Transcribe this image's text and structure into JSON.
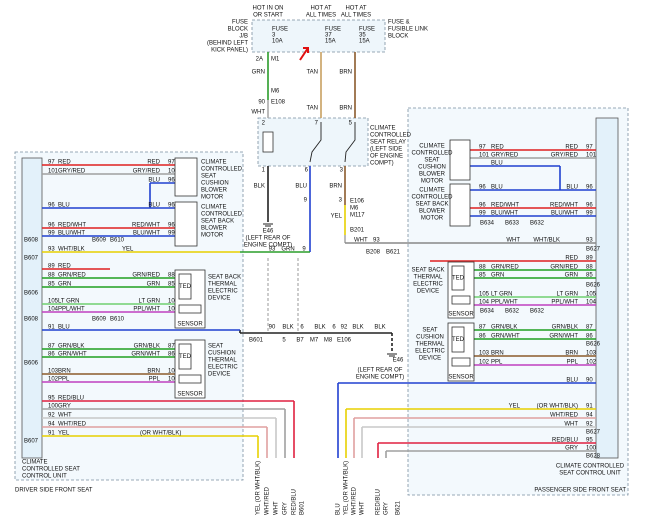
{
  "fuses": {
    "supply_labels": [
      "HOT IN ON",
      "OR START",
      "HOT AT",
      "ALL TIMES",
      "HOT AT",
      "ALL TIMES"
    ],
    "fuse_block": [
      "FUSE",
      "BLOCK",
      "J/B",
      "(BEHIND LEFT",
      "KICK PANEL)"
    ],
    "fuse_3": [
      "FUSE",
      "3",
      "10A"
    ],
    "fuse_37": [
      "FUSE",
      "37",
      "15A"
    ],
    "fuse_35": [
      "FUSE",
      "35",
      "15A"
    ],
    "link_block": [
      "FUSE &",
      "FUSIBLE LINK",
      "BLOCK"
    ]
  },
  "center": {
    "labels": [
      "2A",
      "M1",
      "GRN",
      "M6",
      "90",
      "E108",
      "WHT",
      "TAN",
      "BRN",
      "TAN",
      "BRN",
      "2",
      "7",
      "5",
      "1",
      "6",
      "3",
      "BLK",
      "BLU",
      "BRN",
      "9",
      "3",
      "YEL",
      "E106",
      "M6",
      "M117",
      "B201",
      "WHT",
      "93",
      "B208",
      "B621",
      "E46",
      "93",
      "GRN",
      "9",
      "90",
      "BLK",
      "6",
      "BLK",
      "6",
      "92",
      "BLK",
      "BLK",
      "B601",
      "5",
      "B7",
      "M7",
      "M8",
      "E106",
      "E46"
    ],
    "relay": [
      "CLIMATE",
      "CONTROLLED",
      "SEAT RELAY",
      "(LEFT SIDE",
      "OF ENGINE",
      "COMPT)"
    ],
    "ground_1": [
      "(LEFT REAR OF",
      "ENGINE COMPT)"
    ],
    "ground_2": [
      "(LEFT REAR OF",
      "ENGINE COMPT)"
    ]
  },
  "driver_unit": {
    "rows": [
      {
        "texts": [
          "97",
          "RED",
          "RED",
          "97"
        ],
        "color": "#e02020"
      },
      {
        "texts": [
          "101",
          "GRY/RED",
          "GRY/RED",
          "101"
        ],
        "color": "#a0a0a0"
      },
      {
        "texts": [
          "BLU",
          "96"
        ],
        "color": "#2040d0"
      },
      {
        "texts": [
          "96",
          "BLU",
          "BLU",
          "96"
        ],
        "color": "#2040d0"
      },
      {
        "texts": [
          "96",
          "RED/WHT",
          "RED/WHT",
          "96"
        ],
        "color": "#e02020"
      },
      {
        "texts": [
          "99",
          "BLU/WHT",
          "BLU/WHT",
          "99"
        ],
        "color": "#2040d0"
      },
      {
        "texts": [
          "B608",
          "B609",
          "B610"
        ]
      },
      {
        "texts": [
          "93",
          "WHT/BLK",
          "YEL"
        ],
        "color": "#e8d000"
      },
      {
        "texts": [
          "B607"
        ]
      },
      {
        "texts": [
          "89",
          "RED"
        ],
        "color": "#e02020"
      },
      {
        "texts": [
          "88",
          "GRN/RED",
          "GRN/RED",
          "88"
        ],
        "color": "#20a020"
      },
      {
        "texts": [
          "85",
          "GRN",
          "GRN",
          "85"
        ],
        "color": "#20a020"
      },
      {
        "texts": [
          "B606"
        ]
      },
      {
        "texts": [
          "105",
          "LT GRN",
          "LT GRN",
          "105"
        ],
        "color": "#70d070"
      },
      {
        "texts": [
          "104",
          "PPL/WHT",
          "PPL/WHT",
          "104"
        ],
        "color": "#c040c0"
      },
      {
        "texts": [
          "B608",
          "B609",
          "B610"
        ]
      },
      {
        "texts": [
          "91",
          "BLU"
        ],
        "color": "#2040d0"
      },
      {
        "texts": [
          "87",
          "GRN/BLK",
          "GRN/BLK",
          "87"
        ],
        "color": "#20a020"
      },
      {
        "texts": [
          "86",
          "GRN/WHT",
          "GRN/WHT",
          "86"
        ],
        "color": "#20a020"
      },
      {
        "texts": [
          "B606"
        ]
      },
      {
        "texts": [
          "103",
          "BRN",
          "BRN",
          "103"
        ],
        "color": "#8b5a2b"
      },
      {
        "texts": [
          "102",
          "PPL",
          "PPL",
          "102"
        ],
        "color": "#c040c0"
      },
      {
        "texts": [
          "95",
          "RED/BLU"
        ],
        "color": "#e02040"
      },
      {
        "texts": [
          "100",
          "GRY"
        ],
        "color": "#a0a0a0"
      },
      {
        "texts": [
          "92",
          "WHT"
        ],
        "color": "#c8c8c8"
      },
      {
        "texts": [
          "94",
          "WHT/RED"
        ],
        "color": "#e0a0a0"
      },
      {
        "texts": [
          "91",
          "YEL",
          "(OR WHT/BLK)"
        ],
        "color": "#e8d000"
      },
      {
        "texts": [
          "B607"
        ]
      }
    ],
    "devices": [
      {
        "lines": [
          "CLIMATE",
          "CONTROLLED",
          "SEAT",
          "CUSHION",
          "BLOWER",
          "MOTOR"
        ]
      },
      {
        "lines": [
          "CLIMATE",
          "CONTROLLED",
          "SEAT BACK",
          "BLOWER",
          "MOTOR"
        ]
      },
      {
        "lines": [
          "SEAT BACK",
          "THERMAL",
          "ELECTRIC",
          "DEVICE"
        ],
        "inner": [
          "TED",
          "SENSOR"
        ]
      },
      {
        "lines": [
          "SEAT",
          "CUSHION",
          "THERMAL",
          "ELECTRIC",
          "DEVICE"
        ],
        "inner": [
          "TED",
          "SENSOR"
        ]
      }
    ],
    "title": [
      "CLIMATE",
      "CONTROLLED SEAT",
      "CONTROL UNIT"
    ],
    "seat": "DRIVER SIDE FRONT SEAT",
    "bottom_wires": [
      "YEL (OR WHT/BLK)",
      "WHT/RED",
      "WHT",
      "GRY",
      "RED/BLU",
      "B601"
    ]
  },
  "passenger_unit": {
    "rows": [
      {
        "texts": [
          "97",
          "RED",
          "RED",
          "97"
        ],
        "color": "#e02020"
      },
      {
        "texts": [
          "101",
          "GRY/RED",
          "GRY/RED",
          "101"
        ],
        "color": "#a0a0a0"
      },
      {
        "texts": [
          "BLU"
        ],
        "color": "#2040d0"
      },
      {
        "texts": [
          "96",
          "BLU",
          "BLU",
          "96"
        ],
        "color": "#2040d0"
      },
      {
        "texts": [
          "96",
          "RED/WHT",
          "RED/WHT",
          "96"
        ],
        "color": "#e02020"
      },
      {
        "texts": [
          "99",
          "BLU/WHT",
          "BLU/WHT",
          "99"
        ],
        "color": "#2040d0"
      },
      {
        "texts": [
          "B634",
          "B633",
          "B632"
        ]
      },
      {
        "texts": [
          "WHT",
          "WHT/BLK",
          "93"
        ],
        "color": "#888888"
      },
      {
        "texts": [
          "B627"
        ]
      },
      {
        "texts": [
          "RED",
          "89"
        ],
        "color": "#e02020"
      },
      {
        "texts": [
          "88",
          "GRN/RED",
          "GRN/RED",
          "88"
        ],
        "color": "#20a020"
      },
      {
        "texts": [
          "85",
          "GRN",
          "GRN",
          "85"
        ],
        "color": "#20a020"
      },
      {
        "texts": [
          "B626"
        ]
      },
      {
        "texts": [
          "105",
          "LT GRN",
          "LT GRN",
          "105"
        ],
        "color": "#70d070"
      },
      {
        "texts": [
          "104",
          "PPL/WHT",
          "PPL/WHT",
          "104"
        ],
        "color": "#c040c0"
      },
      {
        "texts": [
          "B634",
          "B632",
          "B632"
        ]
      },
      {
        "texts": [
          "87",
          "GRN/BLK",
          "GRN/BLK",
          "87"
        ],
        "color": "#20a020"
      },
      {
        "texts": [
          "86",
          "GRN/WHT",
          "GRN/WHT",
          "86"
        ],
        "color": "#20a020"
      },
      {
        "texts": [
          "B626"
        ]
      },
      {
        "texts": [
          "103",
          "BRN",
          "BRN",
          "103"
        ],
        "color": "#8b5a2b"
      },
      {
        "texts": [
          "102",
          "PPL",
          "PPL",
          "102"
        ],
        "color": "#c040c0"
      },
      {
        "texts": [
          "BLU",
          "90"
        ],
        "color": "#2040d0"
      },
      {
        "texts": [
          "YEL",
          "(OR WHT/BLK)",
          "91"
        ],
        "color": "#e8d000"
      },
      {
        "texts": [
          "WHT/RED",
          "94"
        ],
        "color": "#e0a0a0"
      },
      {
        "texts": [
          "WHT",
          "92"
        ],
        "color": "#c8c8c8"
      },
      {
        "texts": [
          "B627"
        ]
      },
      {
        "texts": [
          "RED/BLU",
          "95"
        ],
        "color": "#e02040"
      },
      {
        "texts": [
          "GRY",
          "100"
        ],
        "color": "#a0a0a0"
      },
      {
        "texts": [
          "B628"
        ]
      }
    ],
    "devices": [
      {
        "lines": [
          "CLIMATE",
          "CONTROLLED",
          "SEAT",
          "CUSHION",
          "BLOWER",
          "MOTOR"
        ]
      },
      {
        "lines": [
          "CLIMATE",
          "CONTROLLED",
          "SEAT BACK",
          "BLOWER",
          "MOTOR"
        ]
      },
      {
        "lines": [
          "SEAT BACK",
          "THERMAL",
          "ELECTRIC",
          "DEVICE"
        ],
        "inner": [
          "TED",
          "SENSOR"
        ]
      },
      {
        "lines": [
          "SEAT",
          "CUSHION",
          "THERMAL",
          "ELECTRIC",
          "DEVICE"
        ],
        "inner": [
          "TED",
          "SENSOR"
        ]
      }
    ],
    "title": [
      "CLIMATE CONTROLLED",
      "SEAT CONTROL UNIT"
    ],
    "seat": "PASSENGER SIDE FRONT SEAT",
    "bottom_wires": [
      "BLU",
      "YEL (OR WHT/BLK)",
      "WHT/RED",
      "WHT",
      "RED/BLU",
      "GRY",
      "B621"
    ]
  }
}
